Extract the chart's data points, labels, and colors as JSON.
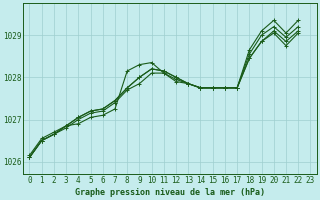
{
  "xlabel": "Graphe pression niveau de la mer (hPa)",
  "bg_color": "#c5eced",
  "grid_color": "#9fcfcf",
  "line_color": "#1a5c1a",
  "spine_color": "#1a5c1a",
  "ylim": [
    1025.7,
    1029.75
  ],
  "xlim": [
    -0.5,
    23.5
  ],
  "y_ticks": [
    1026,
    1027,
    1028,
    1029
  ],
  "x_ticks": [
    0,
    1,
    2,
    3,
    4,
    5,
    6,
    7,
    8,
    9,
    10,
    11,
    12,
    13,
    14,
    15,
    16,
    17,
    18,
    19,
    20,
    21,
    22,
    23
  ],
  "series": {
    "line1": [
      1026.15,
      1026.55,
      1026.7,
      1026.85,
      1026.9,
      1027.05,
      1027.1,
      1027.25,
      1028.15,
      1028.3,
      1028.35,
      1028.1,
      1027.9,
      1027.85,
      1027.75,
      1027.75,
      1027.75,
      1027.75,
      1028.65,
      1029.1,
      1029.35,
      1029.05,
      1029.35,
      null
    ],
    "line2": [
      1026.1,
      1026.5,
      1026.65,
      1026.8,
      1027.0,
      1027.15,
      1027.2,
      1027.4,
      1027.7,
      1027.85,
      1028.1,
      1028.1,
      1027.95,
      1027.85,
      1027.75,
      1027.75,
      1027.75,
      1027.75,
      1028.55,
      1029.0,
      1029.2,
      1028.95,
      1029.2,
      null
    ],
    "line3": [
      1026.1,
      1026.5,
      1026.65,
      1026.85,
      1027.05,
      1027.2,
      1027.25,
      1027.45,
      1027.75,
      1028.0,
      1028.2,
      1028.15,
      1028.0,
      1027.85,
      1027.75,
      1027.75,
      1027.75,
      1027.75,
      1028.45,
      1028.85,
      1029.1,
      1028.85,
      1029.1,
      null
    ],
    "line4": [
      1026.1,
      1026.5,
      1026.65,
      1026.85,
      1027.05,
      1027.2,
      1027.25,
      1027.45,
      1027.75,
      1028.0,
      1028.2,
      1028.15,
      1028.0,
      1027.85,
      1027.75,
      1027.75,
      1027.75,
      1027.75,
      1028.45,
      1028.85,
      1029.05,
      1028.75,
      1029.05,
      null
    ]
  },
  "tick_fontsize": 5.5,
  "label_fontsize": 6.0,
  "linewidth": 0.8,
  "markersize": 3.0,
  "markeredgewidth": 0.7
}
